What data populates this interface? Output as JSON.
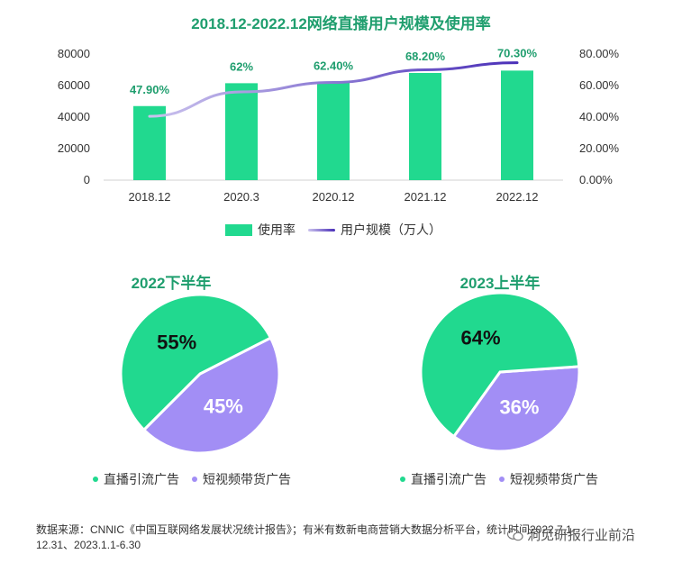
{
  "main_title": "2018.12-2022.12网络直播用户规模及使用率",
  "pie1_title": "2022下半年",
  "pie2_title": "2023上半年",
  "legend": {
    "bar_label": "使用率",
    "line_label": "用户规模（万人）"
  },
  "pie_legend": {
    "item1": "直播引流广告",
    "item2": "短视频带货广告"
  },
  "source_line1": "数据来源：CNNIC《中国互联网络发展状况统计报告》；有米有数新电商营销大数据分析平台，统计时间2022.7.1-",
  "source_line2": "12.31、2023.1.1-6.30",
  "watermark": "洞见研报行业前沿",
  "colors": {
    "title": "#1f9e6e",
    "bar": "#21d98f",
    "line_start": "#cbc3ee",
    "line_end": "#4a2fb8",
    "pie_green": "#21d98f",
    "pie_purple": "#a28ef5"
  },
  "chart_data": [
    {
      "type": "bar",
      "title": "2018.12-2022.12网络直播用户规模及使用率",
      "categories": [
        "2018.12",
        "2020.3",
        "2020.12",
        "2021.12",
        "2022.12"
      ],
      "series": [
        {
          "name": "使用率",
          "axis": "left",
          "values": [
            47000,
            61500,
            62000,
            68000,
            69500
          ]
        },
        {
          "name": "用户规模（万人）",
          "type": "line",
          "axis": "right",
          "values": [
            40.5,
            56.0,
            62.0,
            70.0,
            74.5
          ]
        }
      ],
      "data_labels": [
        "47.90%",
        "62%",
        "62.40%",
        "68.20%",
        "70.30%"
      ],
      "left_axis": {
        "ticks": [
          "0",
          "20000",
          "40000",
          "60000",
          "80000"
        ],
        "ylim": [
          0,
          80000
        ]
      },
      "right_axis": {
        "ticks": [
          "0.00%",
          "20.00%",
          "40.00%",
          "60.00%",
          "80.00%"
        ],
        "ylim": [
          0,
          80
        ]
      },
      "legend": [
        "使用率",
        "用户规模（万人）"
      ]
    },
    {
      "type": "pie",
      "title": "2022下半年",
      "labels": [
        "直播引流广告",
        "短视频带货广告"
      ],
      "values": [
        55,
        45
      ],
      "value_labels": [
        "55%",
        "45%"
      ]
    },
    {
      "type": "pie",
      "title": "2023上半年",
      "labels": [
        "直播引流广告",
        "短视频带货广告"
      ],
      "values": [
        64,
        36
      ],
      "value_labels": [
        "64%",
        "36%"
      ]
    }
  ]
}
